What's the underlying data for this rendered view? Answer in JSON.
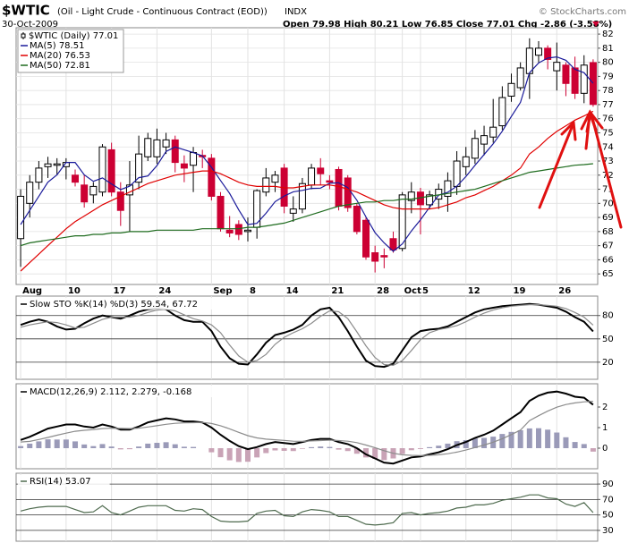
{
  "chart_data": [
    {
      "type": "candlestick",
      "title": "$WTIC",
      "subtitle": "(Oil - Light Crude - Continuous Contract (EOD))",
      "exchange": "INDX",
      "date": "30-Oct-2009",
      "quote": "Open 79.98 High 80.21 Low 76.85 Close 77.01 Chg -2.86 (-3.58%)",
      "credit": "© StockCharts.com",
      "name": "$WTIC (Daily) 77.01",
      "up_color": "#ffffff",
      "down_color": "#cc0033",
      "categories": [
        "Aug",
        null,
        null,
        null,
        null,
        "10",
        null,
        null,
        null,
        null,
        "17",
        null,
        null,
        null,
        null,
        "24",
        null,
        null,
        null,
        null,
        null,
        "Sep",
        null,
        null,
        null,
        "8",
        null,
        null,
        null,
        "14",
        null,
        null,
        null,
        null,
        "21",
        null,
        null,
        null,
        null,
        "28",
        null,
        null,
        "Oct",
        null,
        "5",
        null,
        null,
        null,
        null,
        "12",
        null,
        null,
        null,
        null,
        "19",
        null,
        null,
        null,
        null,
        "26",
        null,
        null,
        null,
        null
      ],
      "open": [
        67.5,
        70,
        71.5,
        72.6,
        72.7,
        72.6,
        72,
        71.3,
        70.6,
        70.8,
        73.8,
        70.8,
        70.6,
        71.5,
        73.3,
        73.3,
        74,
        74.5,
        72.8,
        72.7,
        73.4,
        73.2,
        70.5,
        68.1,
        68.5,
        68,
        68.3,
        70.8,
        71.5,
        72.5,
        69.3,
        69.6,
        71.3,
        72.5,
        71.6,
        72.4,
        71.8,
        69.8,
        68.8,
        66.5,
        66.3,
        67.5,
        66.8,
        70.2,
        70.8,
        69.9,
        70.3,
        70.5,
        71.2,
        72.6,
        73.2,
        74.2,
        74.7,
        75.5,
        77.6,
        78.2,
        79.2,
        80.5,
        81,
        79.4,
        79.8,
        79.6,
        77.8,
        79.98
      ],
      "high": [
        71,
        72,
        73,
        73.3,
        73.2,
        73.2,
        72.4,
        72,
        71.5,
        74.2,
        74.3,
        71.5,
        73,
        74.8,
        75,
        75.3,
        75,
        74.8,
        73.4,
        74,
        73.8,
        73.5,
        70.8,
        69.1,
        68.8,
        69,
        71,
        72.5,
        72.3,
        72.8,
        70.5,
        71.8,
        72.8,
        73.2,
        72,
        72.6,
        72,
        70,
        69,
        67,
        66.8,
        68,
        70.8,
        71.5,
        71.1,
        70.9,
        71.4,
        72.2,
        73.7,
        74,
        75.2,
        75.5,
        77.4,
        78.3,
        79.2,
        80,
        81.7,
        81.5,
        81.2,
        81.4,
        80,
        80.4,
        80.5,
        80.21
      ],
      "low": [
        65.5,
        69,
        71,
        71.8,
        72,
        71.7,
        71.2,
        69.7,
        70,
        70.5,
        70.5,
        68.4,
        68,
        71,
        73,
        72.8,
        73.5,
        72.2,
        71.5,
        70.8,
        72.5,
        70.2,
        68,
        67.6,
        67.4,
        67.3,
        67.5,
        70.5,
        70.8,
        69.3,
        68.7,
        69.3,
        71,
        71.3,
        71,
        69.5,
        69.4,
        67.8,
        66,
        65.1,
        65.4,
        66.5,
        66.6,
        69.3,
        67.8,
        69.6,
        69.6,
        69.4,
        70.6,
        72,
        72.8,
        73.4,
        74.3,
        75.2,
        77.2,
        78,
        77.4,
        80,
        79.5,
        78,
        77.6,
        77.4,
        77.1,
        76.85
      ],
      "close": [
        70.5,
        71.5,
        72.5,
        72.8,
        72.8,
        72.9,
        71.5,
        70.1,
        71.2,
        74,
        70.8,
        69.5,
        71.3,
        73.5,
        74.6,
        74.5,
        74.5,
        72.9,
        72.5,
        73.6,
        73.3,
        70.5,
        68.2,
        67.9,
        67.8,
        68.1,
        70.9,
        71.8,
        72,
        69.8,
        69.6,
        71.4,
        72.5,
        72.1,
        71.5,
        69.8,
        69.7,
        68,
        66.2,
        65.9,
        66.2,
        66.7,
        70.6,
        70.8,
        69.9,
        70.6,
        71,
        71.6,
        73,
        73.3,
        74.6,
        74.8,
        75.4,
        77.5,
        78.5,
        79.6,
        81,
        81,
        80.2,
        80,
        78.5,
        77.8,
        79.8,
        77.01
      ],
      "series": [
        {
          "name": "MA(5) 78.51",
          "color": "#1a1a9a",
          "values": [
            68.5,
            69.5,
            70.5,
            71.5,
            72.02,
            72.9,
            72.9,
            72.02,
            71.56,
            71.8,
            71.38,
            70.98,
            71.22,
            71.82,
            71.94,
            72.68,
            73.68,
            74,
            73.8,
            73.6,
            73.36,
            72.56,
            71.62,
            70.7,
            69.54,
            68.5,
            68.58,
            69.3,
            70.12,
            70.52,
            70.82,
            70.92,
            71.06,
            71.08,
            71.42,
            71.46,
            71.12,
            70.22,
            69.04,
            67.92,
            67.2,
            66.6,
            67.12,
            68.04,
            68.84,
            69.72,
            70.58,
            70.78,
            71.22,
            71.9,
            72.7,
            73.46,
            74.22,
            75.12,
            76.16,
            77.16,
            79.26,
            79.96,
            80.3,
            80.38,
            80.14,
            79.5,
            79.26,
            78.51
          ]
        },
        {
          "name": "MA(20) 76.53",
          "color": "#e00000",
          "values": [
            65.2,
            65.8,
            66.4,
            67,
            67.6,
            68.2,
            68.7,
            69.1,
            69.5,
            69.9,
            70.2,
            70.5,
            70.8,
            71.1,
            71.4,
            71.6,
            71.8,
            72,
            72.1,
            72.2,
            72.3,
            72.3,
            72.1,
            71.8,
            71.5,
            71.3,
            71.2,
            71.2,
            71.2,
            71.1,
            71.1,
            71.2,
            71.3,
            71.3,
            71.3,
            71.2,
            71,
            70.8,
            70.5,
            70.2,
            69.9,
            69.7,
            69.6,
            69.6,
            69.6,
            69.6,
            69.7,
            69.9,
            70.1,
            70.4,
            70.6,
            70.9,
            71.2,
            71.6,
            72,
            72.5,
            73.5,
            74,
            74.6,
            75.1,
            75.5,
            75.9,
            76.2,
            76.53
          ]
        },
        {
          "name": "MA(50) 72.81",
          "color": "#1e6b1e",
          "values": [
            67,
            67.2,
            67.3,
            67.4,
            67.5,
            67.6,
            67.7,
            67.7,
            67.8,
            67.8,
            67.9,
            67.9,
            68,
            68,
            68,
            68.1,
            68.1,
            68.1,
            68.1,
            68.1,
            68.2,
            68.2,
            68.2,
            68.2,
            68.2,
            68.3,
            68.3,
            68.4,
            68.5,
            68.6,
            68.8,
            69,
            69.2,
            69.4,
            69.6,
            69.8,
            69.9,
            70,
            70.1,
            70.1,
            70.2,
            70.2,
            70.3,
            70.3,
            70.4,
            70.5,
            70.6,
            70.7,
            70.8,
            70.9,
            71,
            71.2,
            71.4,
            71.6,
            71.8,
            72,
            72.2,
            72.3,
            72.4,
            72.5,
            72.6,
            72.7,
            72.75,
            72.81
          ]
        }
      ],
      "ylim": [
        64.25,
        82.45
      ],
      "yticks": [
        65,
        66,
        67,
        68,
        69,
        70,
        71,
        72,
        73,
        74,
        75,
        76,
        77,
        78,
        79,
        80,
        81,
        82
      ],
      "grid": true,
      "grid_color": "#e2e2e2"
    },
    {
      "type": "line",
      "title": "Slow STO %K(14) %D(3) 59.54, 67.72",
      "series": [
        {
          "type": "line",
          "color": "#000000",
          "width": 2,
          "values": [
            68,
            72,
            75,
            72,
            66,
            62,
            63,
            70,
            76,
            80,
            78,
            76,
            80,
            85,
            88,
            89,
            88,
            80,
            74,
            72,
            72,
            60,
            40,
            25,
            18,
            17,
            30,
            45,
            55,
            58,
            62,
            68,
            80,
            88,
            90,
            78,
            60,
            40,
            22,
            15,
            14,
            18,
            35,
            52,
            60,
            62,
            63,
            66,
            72,
            78,
            84,
            88,
            90,
            92,
            93,
            94,
            95,
            94,
            92,
            90,
            85,
            78,
            72,
            59.54
          ]
        },
        {
          "type": "line",
          "color": "#8c8c8c",
          "width": 1.2,
          "values": [
            65,
            68,
            70,
            72,
            71,
            68,
            64,
            65,
            70,
            75,
            78,
            78,
            78,
            80,
            84,
            87,
            88,
            86,
            81,
            76,
            73,
            68,
            58,
            42,
            28,
            20,
            22,
            30,
            43,
            52,
            58,
            63,
            70,
            79,
            86,
            85,
            76,
            59,
            41,
            26,
            17,
            16,
            22,
            35,
            49,
            58,
            62,
            64,
            67,
            72,
            78,
            83,
            87,
            90,
            92,
            93,
            94,
            94,
            93,
            92,
            89,
            84,
            78,
            67.72
          ]
        }
      ],
      "ylim": [
        -2,
        105
      ],
      "yticks": [
        20,
        50,
        80
      ],
      "grid": true,
      "grid_color": "#333333"
    },
    {
      "type": "line",
      "title": "MACD(12,26,9) 2.112, 2.279, -0.168",
      "series": [
        {
          "type": "bar",
          "color": "#9a9ab8",
          "negative_color": "#c9a3b6",
          "values": [
            0.1,
            0.22,
            0.33,
            0.43,
            0.42,
            0.42,
            0.33,
            0.18,
            0.1,
            0.2,
            0.08,
            -0.06,
            -0.05,
            0.08,
            0.22,
            0.26,
            0.29,
            0.19,
            0.07,
            0.06,
            0,
            -0.2,
            -0.44,
            -0.59,
            -0.67,
            -0.66,
            -0.45,
            -0.24,
            -0.11,
            -0.13,
            -0.14,
            -0.03,
            0.05,
            0.08,
            0.06,
            -0.07,
            -0.14,
            -0.27,
            -0.45,
            -0.52,
            -0.58,
            -0.5,
            -0.28,
            -0.1,
            -0.04,
            0.05,
            0.12,
            0.22,
            0.34,
            0.39,
            0.47,
            0.5,
            0.56,
            0.69,
            0.79,
            0.87,
            0.96,
            0.97,
            0.9,
            0.76,
            0.53,
            0.3,
            0.2,
            -0.168
          ]
        },
        {
          "type": "line",
          "color": "#000000",
          "width": 2,
          "values": [
            0.4,
            0.55,
            0.75,
            0.95,
            1.05,
            1.15,
            1.15,
            1.05,
            1,
            1.15,
            1.05,
            0.9,
            0.9,
            1.05,
            1.25,
            1.35,
            1.45,
            1.4,
            1.3,
            1.3,
            1.25,
            1,
            0.65,
            0.35,
            0.1,
            -0.05,
            0.05,
            0.2,
            0.3,
            0.25,
            0.2,
            0.3,
            0.4,
            0.45,
            0.45,
            0.3,
            0.2,
            0,
            -0.3,
            -0.5,
            -0.7,
            -0.75,
            -0.6,
            -0.45,
            -0.4,
            -0.3,
            -0.2,
            -0.05,
            0.15,
            0.3,
            0.5,
            0.65,
            0.85,
            1.15,
            1.45,
            1.75,
            2.3,
            2.55,
            2.7,
            2.75,
            2.65,
            2.5,
            2.45,
            2.112
          ]
        },
        {
          "type": "line",
          "color": "#8c8c8c",
          "width": 1.2,
          "values": [
            0.3,
            0.33,
            0.42,
            0.52,
            0.63,
            0.73,
            0.82,
            0.87,
            0.9,
            0.95,
            0.97,
            0.96,
            0.95,
            0.97,
            1.03,
            1.09,
            1.16,
            1.21,
            1.23,
            1.24,
            1.25,
            1.2,
            1.09,
            0.94,
            0.77,
            0.61,
            0.5,
            0.44,
            0.41,
            0.38,
            0.34,
            0.33,
            0.35,
            0.37,
            0.39,
            0.37,
            0.34,
            0.27,
            0.15,
            0.02,
            -0.12,
            -0.25,
            -0.32,
            -0.35,
            -0.36,
            -0.35,
            -0.32,
            -0.27,
            -0.19,
            -0.09,
            0.03,
            0.15,
            0.29,
            0.46,
            0.66,
            0.88,
            1.34,
            1.58,
            1.8,
            1.99,
            2.12,
            2.2,
            2.25,
            2.279
          ]
        }
      ],
      "ylim": [
        -1,
        3.13
      ],
      "yticks": [
        0,
        1,
        2
      ],
      "grid": false
    },
    {
      "type": "line",
      "title": "RSI(14) 53.07",
      "series": [
        {
          "type": "line",
          "color": "#4f6b4f",
          "width": 1.2,
          "values": [
            55,
            58,
            60,
            61,
            61,
            61,
            57,
            53,
            54,
            62,
            53,
            50,
            55,
            60,
            62,
            62,
            62,
            56,
            55,
            58,
            57,
            48,
            42,
            41,
            41,
            42,
            52,
            55,
            56,
            49,
            48,
            54,
            57,
            56,
            54,
            48,
            48,
            43,
            38,
            37,
            38,
            40,
            52,
            53,
            50,
            52,
            53,
            55,
            59,
            60,
            63,
            63,
            65,
            69,
            71,
            73,
            76,
            76,
            72,
            71,
            64,
            61,
            66,
            53.07
          ]
        }
      ],
      "ylim": [
        16,
        104
      ],
      "yticks": [
        30,
        50,
        70,
        90
      ],
      "grid": true,
      "grid_color": "#333333"
    }
  ]
}
